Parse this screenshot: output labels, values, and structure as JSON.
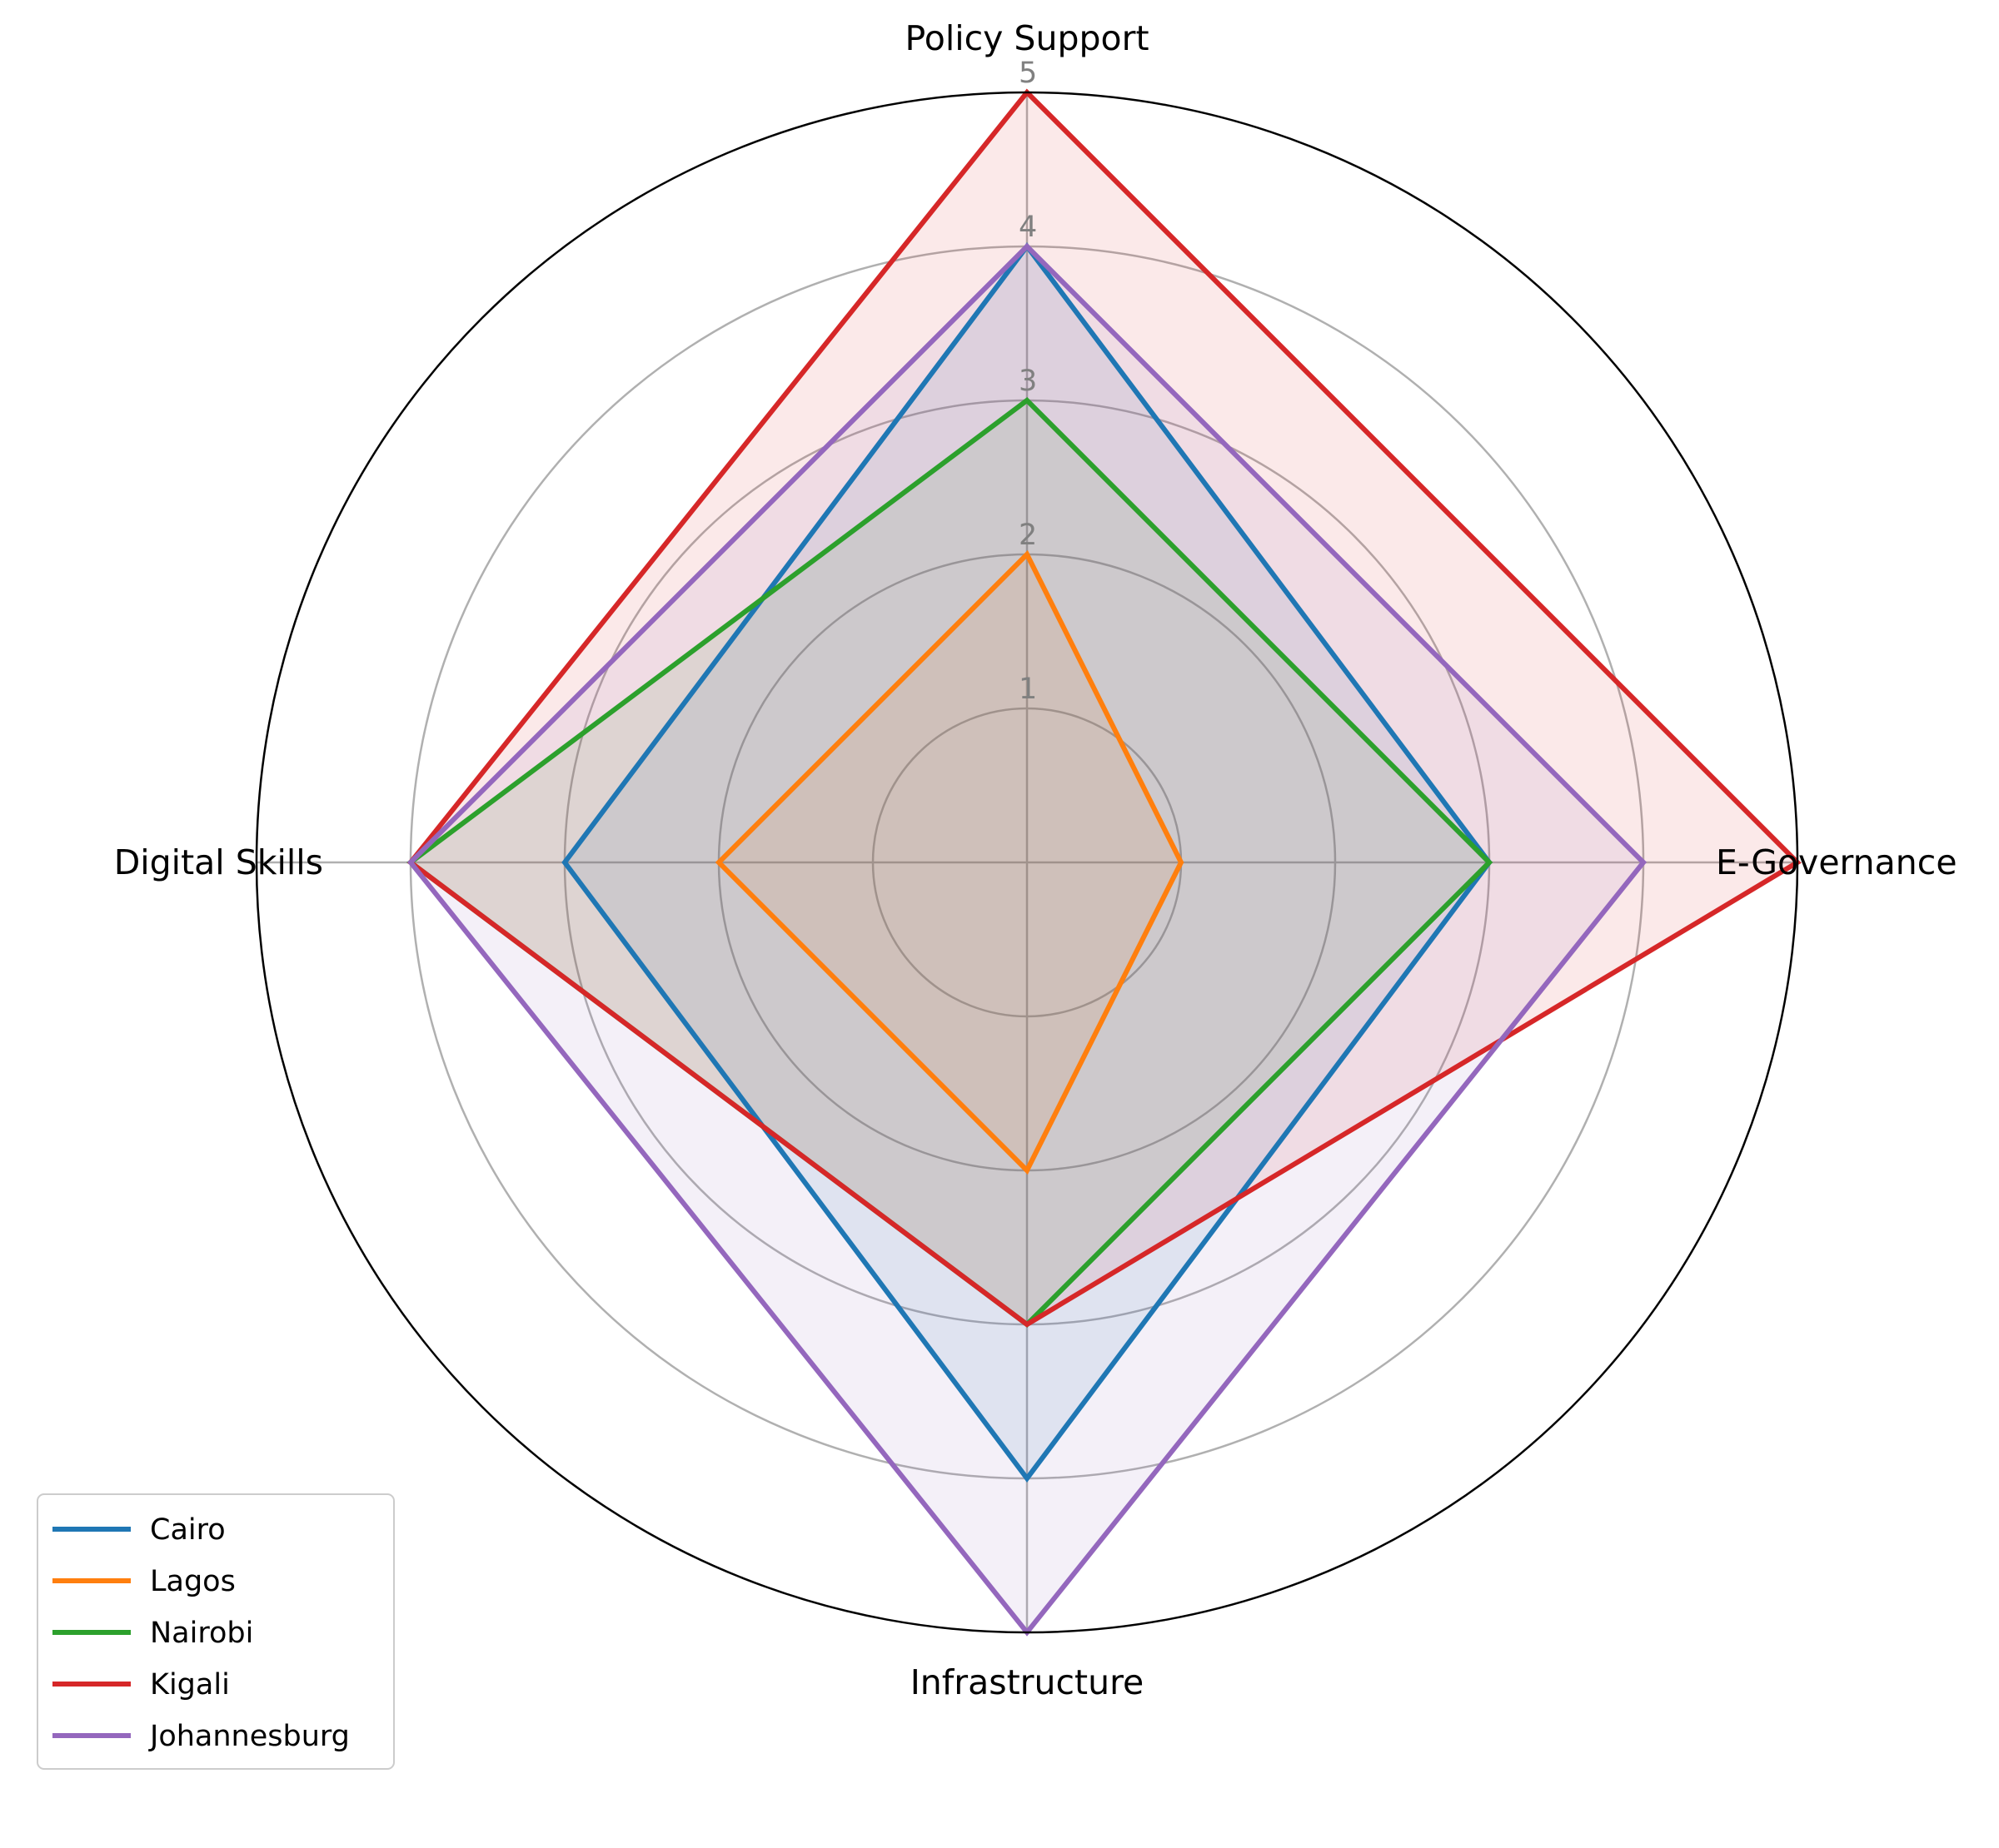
{
  "chart_data": {
    "type": "radar",
    "axes": [
      "Policy Support",
      "E-Governance",
      "Infrastructure",
      "Digital Skills"
    ],
    "rlim": [
      0,
      5
    ],
    "rticks": [
      "1",
      "2",
      "3",
      "4",
      "5"
    ],
    "grid": true,
    "legend_position": "lower-left",
    "series": [
      {
        "name": "Cairo",
        "color": "#1f77b4",
        "values": [
          4,
          3,
          4,
          3
        ]
      },
      {
        "name": "Lagos",
        "color": "#ff7f0e",
        "values": [
          2,
          1,
          2,
          2
        ]
      },
      {
        "name": "Nairobi",
        "color": "#2ca02c",
        "values": [
          3,
          3,
          3,
          4
        ]
      },
      {
        "name": "Kigali",
        "color": "#d62728",
        "values": [
          5,
          5,
          3,
          4
        ]
      },
      {
        "name": "Johannesburg",
        "color": "#9467bd",
        "values": [
          4,
          4,
          5,
          4
        ]
      }
    ]
  }
}
